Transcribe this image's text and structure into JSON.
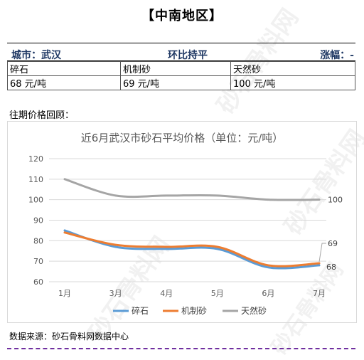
{
  "watermark": "砂石骨料网",
  "watermark_url": "www.cssglw.com",
  "region_title": "【中南地区】",
  "summary": {
    "city": "城市：武汉",
    "change": "环比持平",
    "amplitude": "涨幅：-"
  },
  "price_table": [
    {
      "name": "碎石",
      "price": "68 元/吨"
    },
    {
      "name": "机制砂",
      "price": "69 元/吨"
    },
    {
      "name": "天然砂",
      "price": "100 元/吨"
    }
  ],
  "history_label": "往期价格回顾：",
  "chart_data": {
    "type": "line",
    "title": "近6月武汉市砂石平均价格（单位：元/吨）",
    "categories": [
      "1月",
      "3月",
      "4月",
      "5月",
      "6月",
      "7月"
    ],
    "ylim": [
      60,
      120
    ],
    "yticks": [
      60,
      70,
      80,
      90,
      100,
      110,
      120
    ],
    "grid": true,
    "legend": "bottom",
    "series": [
      {
        "name": "碎石",
        "color": "#5b9bd5",
        "values": [
          85,
          77,
          76,
          76,
          67,
          68
        ]
      },
      {
        "name": "机制砂",
        "color": "#ed7d31",
        "values": [
          84,
          78,
          77,
          77,
          68,
          69
        ]
      },
      {
        "name": "天然砂",
        "color": "#a5a5a5",
        "values": [
          110,
          102,
          102,
          102,
          100,
          100
        ]
      }
    ],
    "data_labels": [
      {
        "series": 0,
        "index": 5,
        "text": "68"
      },
      {
        "series": 1,
        "index": 5,
        "text": "69"
      },
      {
        "series": 2,
        "index": 5,
        "text": "100"
      }
    ]
  },
  "source": "数据来源：砂石骨料网数据中心"
}
